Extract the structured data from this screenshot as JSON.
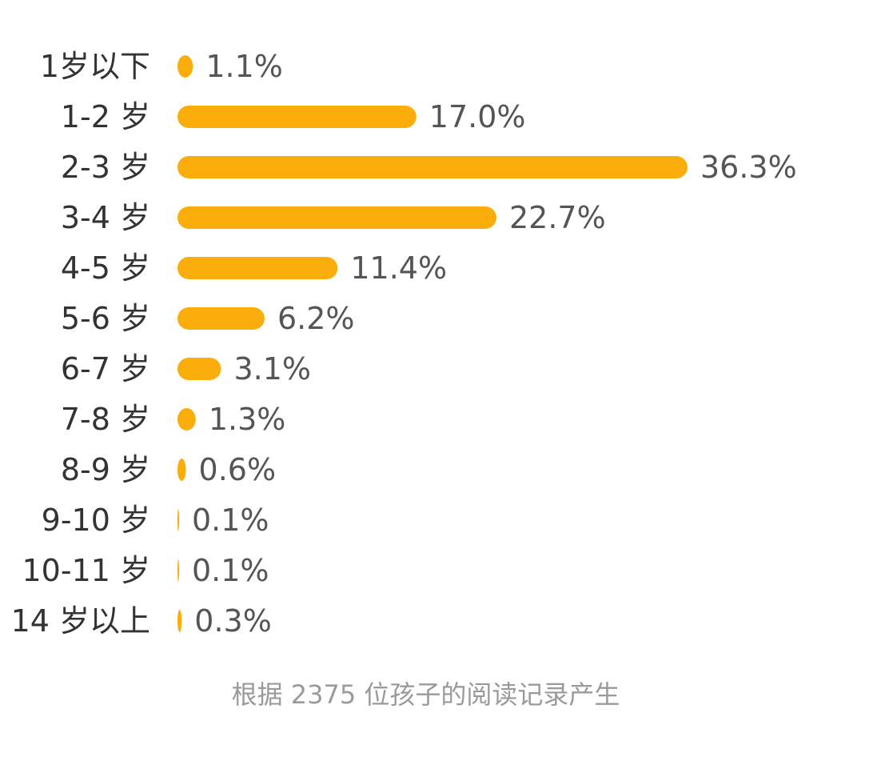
{
  "chart_data": {
    "type": "bar",
    "orientation": "horizontal",
    "categories": [
      "1岁以下",
      "1-2 岁",
      "2-3 岁",
      "3-4 岁",
      "4-5 岁",
      "5-6 岁",
      "6-7 岁",
      "7-8 岁",
      "8-9 岁",
      "9-10 岁",
      "10-11 岁",
      "14 岁以上"
    ],
    "values": [
      1.1,
      17.0,
      36.3,
      22.7,
      11.4,
      6.2,
      3.1,
      1.3,
      0.6,
      0.1,
      0.1,
      0.3
    ],
    "value_labels": [
      "1.1%",
      "17.0%",
      "36.3%",
      "22.7%",
      "11.4%",
      "6.2%",
      "3.1%",
      "1.3%",
      "0.6%",
      "0.1%",
      "0.1%",
      "0.3%"
    ],
    "bar_color": "#FBAE0B",
    "grid": false,
    "legend": "none"
  },
  "footnote": "根据 2375 位孩子的阅读记录产生"
}
